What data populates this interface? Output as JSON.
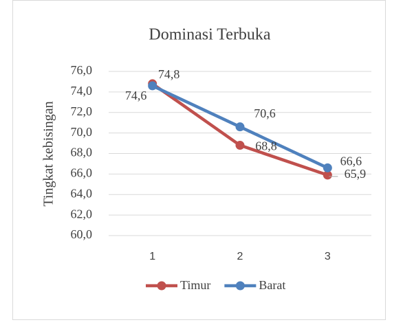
{
  "chart_data": {
    "type": "line",
    "title": "Dominasi Terbuka",
    "y_label": "Tingkat kebisingan",
    "categories": [
      "1",
      "2",
      "3"
    ],
    "series": [
      {
        "name": "Timur",
        "color": "#c0504d",
        "values": [
          74.8,
          68.8,
          65.9
        ],
        "value_labels": [
          "74,8",
          "68,8",
          "65,9"
        ]
      },
      {
        "name": "Barat",
        "color": "#4f81bd",
        "values": [
          74.6,
          70.6,
          66.6
        ],
        "value_labels": [
          "74,6",
          "70,6",
          "66,6"
        ]
      }
    ],
    "ylim": [
      60,
      76
    ],
    "yticks": [
      {
        "value": 60,
        "label": "60,0"
      },
      {
        "value": 62,
        "label": "62,0"
      },
      {
        "value": 64,
        "label": "64,0"
      },
      {
        "value": 66,
        "label": "66,0"
      },
      {
        "value": 68,
        "label": "68,0"
      },
      {
        "value": 70,
        "label": "70,0"
      },
      {
        "value": 72,
        "label": "72,0"
      },
      {
        "value": 74,
        "label": "74,0"
      },
      {
        "value": 76,
        "label": "76,0"
      }
    ],
    "grid": true,
    "legend": "bottom"
  }
}
